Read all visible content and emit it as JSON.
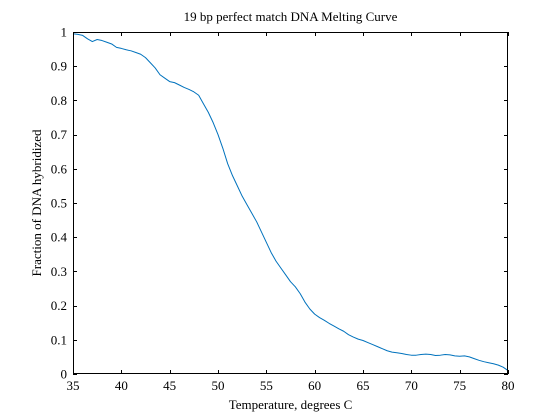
{
  "chart_data": {
    "type": "line",
    "title": "19 bp perfect match DNA Melting Curve",
    "xlabel": "Temperature, degrees C",
    "ylabel": "Fraction of DNA hybridized",
    "xlim": [
      35,
      80
    ],
    "ylim": [
      0,
      1
    ],
    "xticks": [
      35,
      40,
      45,
      50,
      55,
      60,
      65,
      70,
      75,
      80
    ],
    "yticks": [
      0,
      0.1,
      0.2,
      0.3,
      0.4,
      0.5,
      0.6,
      0.7,
      0.8,
      0.9,
      1
    ],
    "xtick_labels": [
      "35",
      "40",
      "45",
      "50",
      "55",
      "60",
      "65",
      "70",
      "75",
      "80"
    ],
    "ytick_labels": [
      "0",
      "0.1",
      "0.2",
      "0.3",
      "0.4",
      "0.5",
      "0.6",
      "0.7",
      "0.8",
      "0.9",
      "1"
    ],
    "grid": false,
    "box": true,
    "series": [
      {
        "color": "#0072bd",
        "x": [
          35,
          35.5,
          36,
          36.5,
          37,
          37.5,
          38,
          38.5,
          39,
          39.5,
          40,
          40.5,
          41,
          41.5,
          42,
          42.5,
          43,
          43.5,
          44,
          44.5,
          45,
          45.5,
          46,
          46.5,
          47,
          47.5,
          48,
          48.5,
          49,
          49.5,
          50,
          50.5,
          51,
          51.5,
          52,
          52.5,
          53,
          53.5,
          54,
          54.5,
          55,
          55.5,
          56,
          56.5,
          57,
          57.5,
          58,
          58.5,
          59,
          59.5,
          60,
          60.5,
          61,
          61.5,
          62,
          62.5,
          63,
          63.5,
          64,
          64.5,
          65,
          65.5,
          66,
          66.5,
          67,
          67.5,
          68,
          68.5,
          69,
          69.5,
          70,
          70.5,
          71,
          71.5,
          72,
          72.5,
          73,
          73.5,
          74,
          74.5,
          75,
          75.5,
          76,
          76.5,
          77,
          77.5,
          78,
          78.5,
          79,
          79.5,
          80
        ],
        "y": [
          0.995,
          0.993,
          0.99,
          0.98,
          0.972,
          0.978,
          0.975,
          0.97,
          0.965,
          0.955,
          0.952,
          0.948,
          0.945,
          0.94,
          0.935,
          0.925,
          0.91,
          0.895,
          0.875,
          0.865,
          0.855,
          0.852,
          0.845,
          0.838,
          0.832,
          0.825,
          0.815,
          0.79,
          0.765,
          0.735,
          0.7,
          0.66,
          0.615,
          0.58,
          0.55,
          0.52,
          0.495,
          0.47,
          0.445,
          0.415,
          0.385,
          0.355,
          0.33,
          0.31,
          0.29,
          0.27,
          0.255,
          0.235,
          0.21,
          0.19,
          0.175,
          0.165,
          0.157,
          0.148,
          0.14,
          0.132,
          0.125,
          0.115,
          0.108,
          0.102,
          0.098,
          0.092,
          0.086,
          0.08,
          0.074,
          0.068,
          0.064,
          0.062,
          0.06,
          0.057,
          0.055,
          0.055,
          0.057,
          0.058,
          0.057,
          0.054,
          0.055,
          0.057,
          0.056,
          0.053,
          0.052,
          0.053,
          0.05,
          0.045,
          0.04,
          0.036,
          0.033,
          0.03,
          0.026,
          0.02,
          0.01
        ]
      }
    ]
  }
}
